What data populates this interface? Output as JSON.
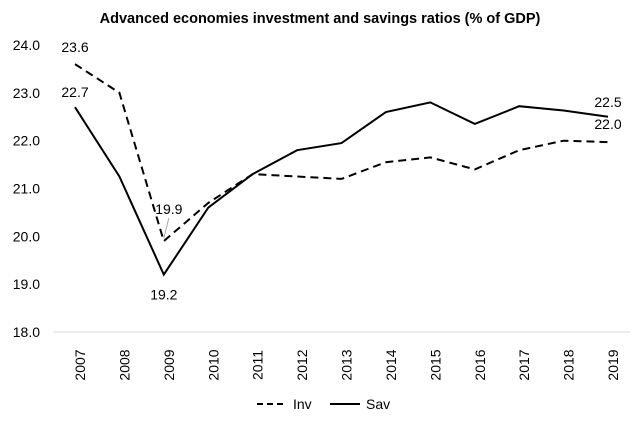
{
  "chart_data": {
    "type": "line",
    "title": "Advanced economies investment and savings ratios (% of GDP)",
    "xlabel": "",
    "ylabel": "",
    "ylim": [
      18.0,
      24.0
    ],
    "y_ticks": [
      "18.0",
      "19.0",
      "20.0",
      "21.0",
      "22.0",
      "23.0",
      "24.0"
    ],
    "grid": false,
    "legend_position": "bottom",
    "categories": [
      "2007",
      "2008",
      "2009",
      "2010",
      "2011",
      "2012",
      "2013",
      "2014",
      "2015",
      "2016",
      "2017",
      "2018",
      "2019"
    ],
    "series": [
      {
        "name": "Inv",
        "style": "dashed",
        "color": "#000000",
        "values": [
          23.6,
          23.0,
          19.9,
          20.7,
          21.3,
          21.25,
          21.2,
          21.55,
          21.65,
          21.4,
          21.8,
          22.0,
          21.97
        ]
      },
      {
        "name": "Sav",
        "style": "solid",
        "color": "#000000",
        "values": [
          22.7,
          21.25,
          19.2,
          20.6,
          21.3,
          21.8,
          21.95,
          22.6,
          22.8,
          22.35,
          22.72,
          22.63,
          22.5
        ]
      }
    ],
    "annotations": [
      {
        "series": 0,
        "index": 0,
        "text": "23.6"
      },
      {
        "series": 1,
        "index": 0,
        "text": "22.7"
      },
      {
        "series": 0,
        "index": 2,
        "text": "19.9"
      },
      {
        "series": 1,
        "index": 2,
        "text": "19.2"
      },
      {
        "series": 1,
        "index": 12,
        "text": "22.5"
      },
      {
        "series": 0,
        "index": 12,
        "text": "22.0"
      }
    ]
  }
}
